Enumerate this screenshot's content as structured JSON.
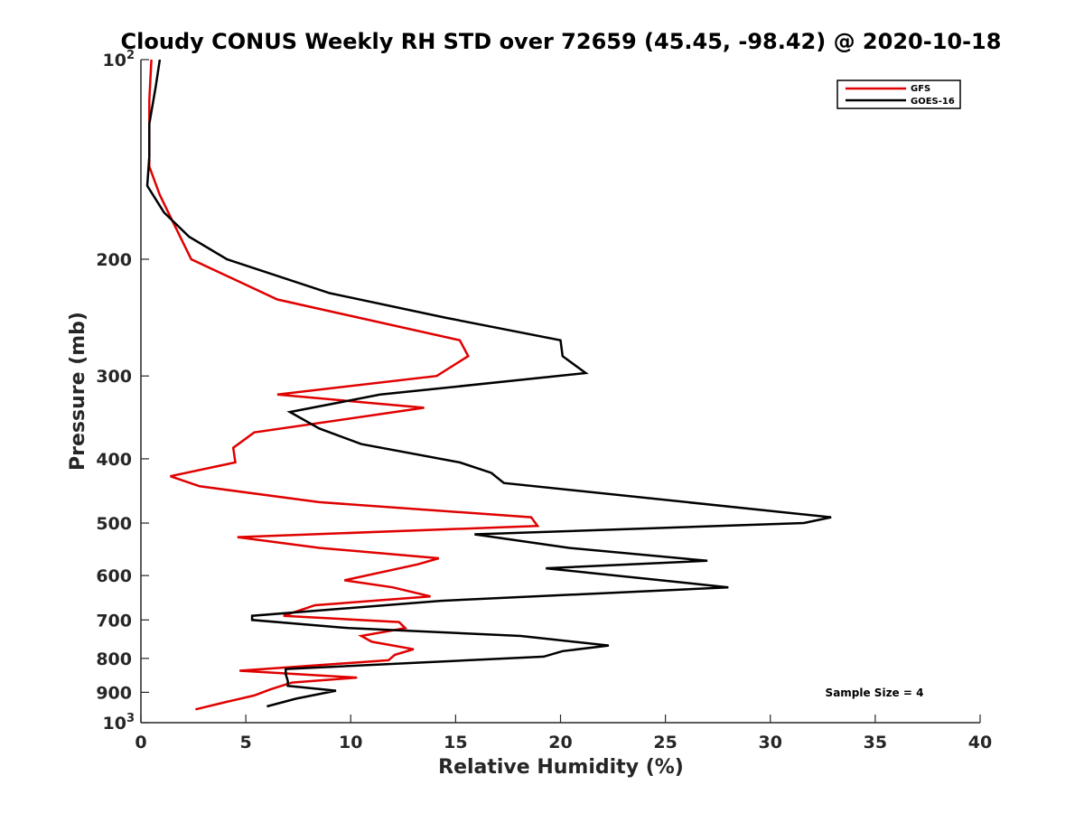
{
  "chart_data": {
    "type": "line",
    "title": "Cloudy CONUS Weekly RH STD over 72659 (45.45, -98.42) @ 2020-10-18",
    "xlabel": "Relative Humidity (%)",
    "ylabel": "Pressure (mb)",
    "xlim": [
      0,
      40
    ],
    "ylim": [
      100,
      1000
    ],
    "y_scale": "log",
    "y_reversed": true,
    "x_ticks": [
      0,
      5,
      10,
      15,
      20,
      25,
      30,
      35,
      40
    ],
    "y_ticks": [
      {
        "value": 100,
        "label": "10",
        "sup": "2"
      },
      {
        "value": 200,
        "label": "200"
      },
      {
        "value": 300,
        "label": "300"
      },
      {
        "value": 400,
        "label": "400"
      },
      {
        "value": 500,
        "label": "500"
      },
      {
        "value": 600,
        "label": "600"
      },
      {
        "value": 700,
        "label": "700"
      },
      {
        "value": 800,
        "label": "800"
      },
      {
        "value": 900,
        "label": "900"
      },
      {
        "value": 1000,
        "label": "10",
        "sup": "3"
      }
    ],
    "grid": false,
    "legend_position": "top-right",
    "series": [
      {
        "name": "GFS",
        "color": "#e00000",
        "points": [
          [
            0.5,
            100
          ],
          [
            0.4,
            115
          ],
          [
            0.4,
            130
          ],
          [
            0.4,
            145
          ],
          [
            0.9,
            160
          ],
          [
            1.5,
            175
          ],
          [
            2.4,
            200
          ],
          [
            6.5,
            230
          ],
          [
            15.2,
            265
          ],
          [
            15.6,
            280
          ],
          [
            14.1,
            300
          ],
          [
            6.5,
            320
          ],
          [
            13.5,
            335
          ],
          [
            5.4,
            365
          ],
          [
            4.4,
            385
          ],
          [
            4.5,
            405
          ],
          [
            1.4,
            425
          ],
          [
            2.8,
            440
          ],
          [
            8.5,
            465
          ],
          [
            18.6,
            490
          ],
          [
            18.9,
            505
          ],
          [
            4.6,
            525
          ],
          [
            8.5,
            545
          ],
          [
            14.2,
            565
          ],
          [
            13.2,
            577
          ],
          [
            9.7,
            610
          ],
          [
            12.0,
            625
          ],
          [
            13.8,
            645
          ],
          [
            8.3,
            665
          ],
          [
            6.8,
            690
          ],
          [
            12.3,
            705
          ],
          [
            12.6,
            720
          ],
          [
            10.5,
            740
          ],
          [
            11.0,
            755
          ],
          [
            13.0,
            775
          ],
          [
            12.1,
            790
          ],
          [
            11.8,
            805
          ],
          [
            4.7,
            835
          ],
          [
            10.3,
            855
          ],
          [
            7.2,
            870
          ],
          [
            6.2,
            890
          ],
          [
            5.4,
            910
          ],
          [
            4.1,
            930
          ],
          [
            2.6,
            955
          ]
        ]
      },
      {
        "name": "GOES-16",
        "color": "#000000",
        "points": [
          [
            0.9,
            100
          ],
          [
            0.7,
            110
          ],
          [
            0.4,
            125
          ],
          [
            0.4,
            140
          ],
          [
            0.3,
            155
          ],
          [
            1.1,
            170
          ],
          [
            2.3,
            185
          ],
          [
            4.1,
            200
          ],
          [
            9.0,
            225
          ],
          [
            14.5,
            245
          ],
          [
            20.0,
            265
          ],
          [
            20.1,
            280
          ],
          [
            21.2,
            297
          ],
          [
            11.4,
            320
          ],
          [
            7.1,
            340
          ],
          [
            8.5,
            360
          ],
          [
            10.5,
            380
          ],
          [
            15.2,
            405
          ],
          [
            16.7,
            420
          ],
          [
            17.3,
            435
          ],
          [
            32.9,
            490
          ],
          [
            31.6,
            500
          ],
          [
            15.9,
            520
          ],
          [
            20.4,
            545
          ],
          [
            27.0,
            570
          ],
          [
            19.3,
            585
          ],
          [
            24.8,
            610
          ],
          [
            28.0,
            625
          ],
          [
            14.3,
            655
          ],
          [
            5.3,
            690
          ],
          [
            5.3,
            700
          ],
          [
            9.9,
            720
          ],
          [
            18.1,
            740
          ],
          [
            22.3,
            765
          ],
          [
            20.1,
            780
          ],
          [
            19.2,
            795
          ],
          [
            6.9,
            830
          ],
          [
            6.9,
            845
          ],
          [
            7.0,
            865
          ],
          [
            7.0,
            880
          ],
          [
            9.3,
            895
          ],
          [
            7.4,
            920
          ],
          [
            6.0,
            945
          ]
        ]
      }
    ],
    "annotations": [
      {
        "text": "Sample Size = 4"
      }
    ]
  }
}
